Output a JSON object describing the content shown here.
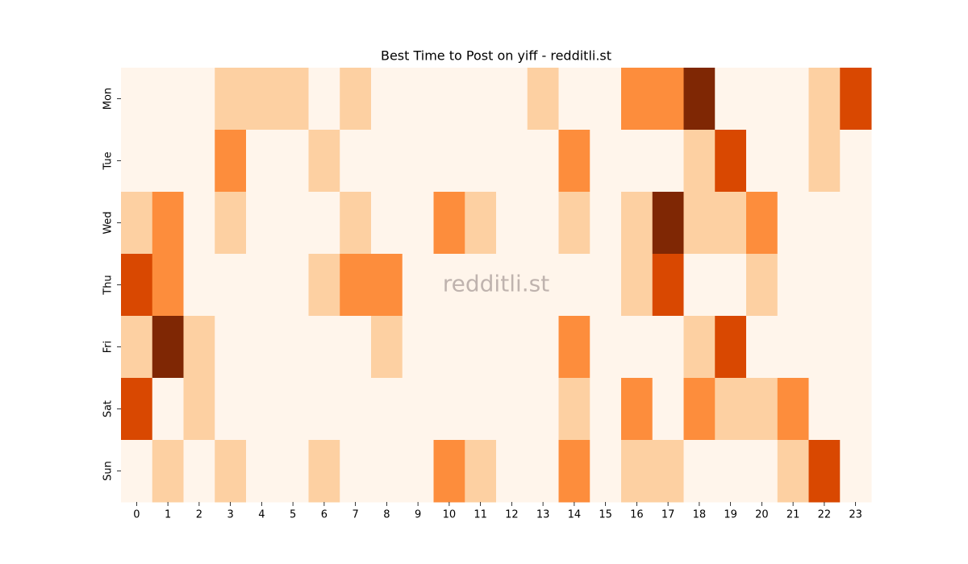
{
  "chart_data": {
    "type": "heatmap",
    "title": "Best Time to Post on yiff - redditli.st",
    "watermark": "redditli.st",
    "x": [
      0,
      1,
      2,
      3,
      4,
      5,
      6,
      7,
      8,
      9,
      10,
      11,
      12,
      13,
      14,
      15,
      16,
      17,
      18,
      19,
      20,
      21,
      22,
      23
    ],
    "categories": [
      "Mon",
      "Tue",
      "Wed",
      "Thu",
      "Fri",
      "Sat",
      "Sun"
    ],
    "values": [
      [
        0,
        0,
        0,
        1,
        1,
        1,
        0,
        1,
        0,
        0,
        0,
        0,
        0,
        1,
        0,
        0,
        2,
        2,
        4,
        0,
        0,
        0,
        1,
        3
      ],
      [
        0,
        0,
        0,
        2,
        0,
        0,
        1,
        0,
        0,
        0,
        0,
        0,
        0,
        0,
        2,
        0,
        0,
        0,
        1,
        3,
        0,
        0,
        1,
        0
      ],
      [
        1,
        2,
        0,
        1,
        0,
        0,
        0,
        1,
        0,
        0,
        2,
        1,
        0,
        0,
        1,
        0,
        1,
        4,
        1,
        1,
        2,
        0,
        0,
        0
      ],
      [
        3,
        2,
        0,
        0,
        0,
        0,
        1,
        2,
        2,
        0,
        0,
        0,
        0,
        0,
        0,
        0,
        1,
        3,
        0,
        0,
        1,
        0,
        0,
        0
      ],
      [
        1,
        4,
        1,
        0,
        0,
        0,
        0,
        0,
        1,
        0,
        0,
        0,
        0,
        0,
        2,
        0,
        0,
        0,
        1,
        3,
        0,
        0,
        0,
        0
      ],
      [
        3,
        0,
        1,
        0,
        0,
        0,
        0,
        0,
        0,
        0,
        0,
        0,
        0,
        0,
        1,
        0,
        2,
        0,
        2,
        1,
        1,
        2,
        0,
        0
      ],
      [
        0,
        1,
        0,
        1,
        0,
        0,
        1,
        0,
        0,
        0,
        2,
        1,
        0,
        0,
        2,
        0,
        1,
        1,
        0,
        0,
        0,
        1,
        3,
        0
      ]
    ],
    "colormap": [
      "#fff5eb",
      "#fdd0a2",
      "#fd8d3c",
      "#d94801",
      "#7f2704"
    ]
  }
}
